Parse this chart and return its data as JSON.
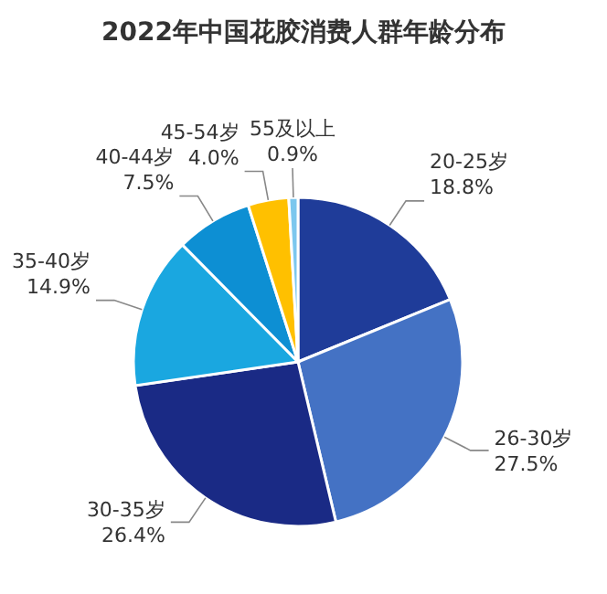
{
  "chart_data": {
    "type": "pie",
    "title": "2022年中国花胶消费人群年龄分布",
    "categories": [
      "20-25岁",
      "26-30岁",
      "30-35岁",
      "35-40岁",
      "40-44岁",
      "45-54岁",
      "55及以上"
    ],
    "values": [
      18.8,
      27.5,
      26.4,
      14.9,
      7.5,
      4.0,
      0.9
    ],
    "value_labels": [
      "18.8%",
      "27.5%",
      "26.4%",
      "14.9%",
      "7.5%",
      "4.0%",
      "0.9%"
    ],
    "colors": [
      "#1f3c99",
      "#4472c4",
      "#1a2a85",
      "#1aa7e0",
      "#0d8fd3",
      "#ffc000",
      "#7cc7ee"
    ]
  }
}
